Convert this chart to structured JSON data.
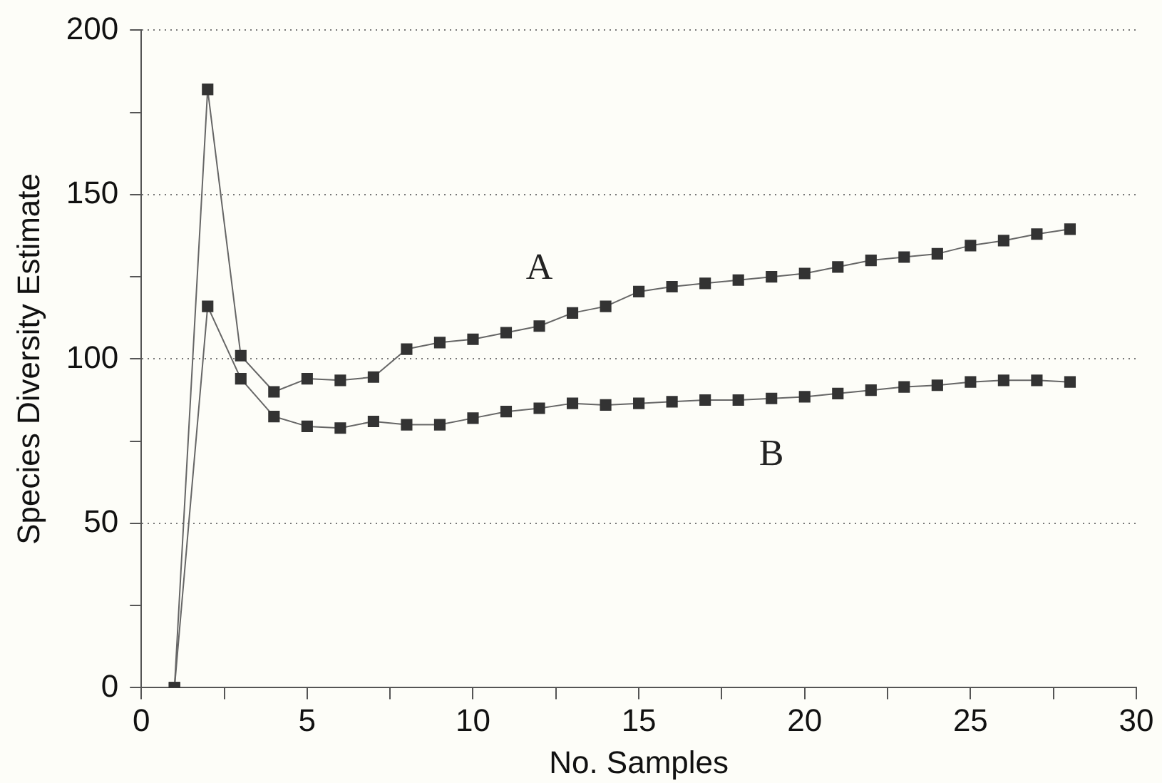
{
  "chart_data": {
    "type": "line",
    "xlabel": "No. Samples",
    "ylabel": "Species Diversity Estimate",
    "x": [
      1,
      2,
      3,
      4,
      5,
      6,
      7,
      8,
      9,
      10,
      11,
      12,
      13,
      14,
      15,
      16,
      17,
      18,
      19,
      20,
      21,
      22,
      23,
      24,
      25,
      26,
      27,
      28
    ],
    "series": [
      {
        "name": "A",
        "color": "#333333",
        "values": [
          0,
          182,
          101,
          90,
          94,
          93.5,
          94.5,
          103,
          105,
          106,
          108,
          110,
          114,
          116,
          120.5,
          122,
          123,
          124,
          125,
          126,
          128,
          130,
          131,
          132,
          134.5,
          136,
          138,
          139.5
        ]
      },
      {
        "name": "B",
        "color": "#333333",
        "values": [
          0,
          116,
          94,
          82.5,
          79.5,
          79,
          81,
          80,
          80,
          82,
          84,
          85,
          86.5,
          86,
          86.5,
          87,
          87.5,
          87.5,
          88,
          88.5,
          89.5,
          90.5,
          91.5,
          92,
          93,
          93.5,
          93.5,
          93
        ]
      }
    ],
    "xlim": [
      0,
      30
    ],
    "xticks": [
      0,
      {
        "value": 2.5,
        "label": null
      },
      5,
      {
        "value": 7.5,
        "label": null
      },
      10,
      {
        "value": 12.5,
        "label": null
      },
      15,
      {
        "value": 17.5,
        "label": null
      },
      20,
      {
        "value": 22.5,
        "label": null
      },
      25,
      {
        "value": 27.5,
        "label": null
      },
      30
    ],
    "ylim": [
      0,
      200
    ],
    "yticks": [
      0,
      {
        "value": 25,
        "label": null
      },
      50,
      {
        "value": 75,
        "label": null
      },
      100,
      {
        "value": 125,
        "label": null
      },
      150,
      {
        "value": 175,
        "label": null
      },
      200
    ],
    "grid": "y",
    "marker": "square",
    "line_style": "solid",
    "legend": false
  }
}
